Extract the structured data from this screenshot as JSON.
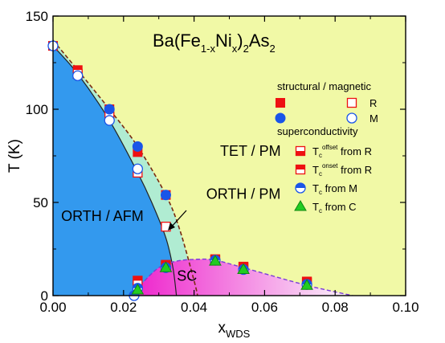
{
  "chart_data": {
    "type": "scatter",
    "title": {
      "parts": [
        {
          "text": "Ba(Fe",
          "sub": false
        },
        {
          "text": "1-x",
          "sub": true
        },
        {
          "text": "Ni",
          "sub": false
        },
        {
          "text": "x",
          "sub": true
        },
        {
          "text": ")",
          "sub": false
        },
        {
          "text": "2",
          "sub": true
        },
        {
          "text": "As",
          "sub": false
        },
        {
          "text": "2",
          "sub": true
        }
      ]
    },
    "xlabel": {
      "main": "x",
      "sub": "WDS"
    },
    "ylabel": "T (K)",
    "xlim": [
      0.0,
      0.1
    ],
    "ylim": [
      0,
      150
    ],
    "xticks": [
      "0.00",
      "0.02",
      "0.04",
      "0.06",
      "0.08",
      "0.10"
    ],
    "xtick_values": [
      0.0,
      0.02,
      0.04,
      0.06,
      0.08,
      0.1
    ],
    "yticks": [
      "0",
      "50",
      "100",
      "150"
    ],
    "ytick_values": [
      0,
      50,
      100,
      150
    ],
    "grid": false,
    "legend_position": "right",
    "colors": {
      "tet_region": "#f1f9a6",
      "orth_region": "#3399ee",
      "orth_pm_band": "#b0ecd2",
      "sc_start": "#ee22cc",
      "sc_end": "#faf6fb",
      "marker_red": "#ee1111",
      "marker_blue": "#1a55e8",
      "marker_green": "#22cc22",
      "boundary": "#7a2a10"
    },
    "regions": [
      {
        "label": "TET / PM",
        "x": 0.056,
        "y": 75
      },
      {
        "label": "ORTH / PM",
        "x": 0.054,
        "y": 52
      },
      {
        "label": "ORTH / AFM",
        "x": 0.014,
        "y": 40
      },
      {
        "label": "SC",
        "x": 0.038,
        "y": 8
      }
    ],
    "boundaries": {
      "structural": [
        [
          0.0,
          137
        ],
        [
          0.007,
          121
        ],
        [
          0.016,
          100
        ],
        [
          0.024,
          80
        ],
        [
          0.032,
          54
        ],
        [
          0.036,
          35
        ],
        [
          0.04,
          8
        ],
        [
          0.041,
          0
        ]
      ],
      "magnetic": [
        [
          0.0,
          134
        ],
        [
          0.007,
          119
        ],
        [
          0.016,
          94
        ],
        [
          0.024,
          66
        ],
        [
          0.028,
          50
        ],
        [
          0.032,
          31
        ],
        [
          0.034,
          15
        ],
        [
          0.035,
          0
        ]
      ],
      "superconducting": [
        [
          0.0225,
          0
        ],
        [
          0.025,
          6
        ],
        [
          0.03,
          15
        ],
        [
          0.035,
          18.5
        ],
        [
          0.041,
          19.5
        ],
        [
          0.046,
          19
        ],
        [
          0.054,
          15
        ],
        [
          0.072,
          5.5
        ],
        [
          0.085,
          0
        ]
      ]
    },
    "series": [
      {
        "name": "structural from R",
        "marker": "square-filled-red",
        "x": [
          0.0,
          0.007,
          0.016,
          0.024,
          0.032
        ],
        "y": [
          134,
          121,
          100,
          77,
          54
        ]
      },
      {
        "name": "magnetic from R",
        "marker": "square-open-red",
        "x": [
          0.007,
          0.016,
          0.024,
          0.032
        ],
        "y": [
          119,
          96,
          66,
          37
        ]
      },
      {
        "name": "structural from M",
        "marker": "circle-filled-blue",
        "x": [
          0.016,
          0.024,
          0.032
        ],
        "y": [
          100,
          80,
          54
        ]
      },
      {
        "name": "magnetic from M",
        "marker": "circle-open-blue",
        "x": [
          0.0,
          0.007,
          0.016,
          0.024
        ],
        "y": [
          134,
          118,
          94,
          68
        ]
      },
      {
        "name": "Tc offset from R",
        "marker": "square-half-red-bottom",
        "x": [
          0.024,
          0.032,
          0.046,
          0.054,
          0.072
        ],
        "y": [
          6,
          16,
          19,
          15,
          7
        ]
      },
      {
        "name": "Tc onset from R",
        "marker": "square-half-red-top",
        "x": [
          0.024,
          0.032,
          0.046,
          0.054,
          0.072
        ],
        "y": [
          8,
          16.5,
          19.5,
          15.5,
          7.5
        ]
      },
      {
        "name": "Tc from M",
        "marker": "circle-half-blue",
        "x": [
          0.023,
          0.024,
          0.032,
          0.046,
          0.054,
          0.072
        ],
        "y": [
          0,
          4,
          15,
          19,
          14,
          6
        ]
      },
      {
        "name": "Tc from C",
        "marker": "triangle-green",
        "x": [
          0.024,
          0.032,
          0.046,
          0.054,
          0.072
        ],
        "y": [
          3,
          15,
          18.5,
          14,
          5.5
        ]
      }
    ],
    "legend": {
      "header_structural": "structural / magnetic",
      "r_label": "R",
      "m_label": "M",
      "header_sc": "superconductivity",
      "entries": [
        {
          "marker": "square-half-red-bottom",
          "main": "T",
          "sub": "c",
          "sup": "offset",
          "rest": " from R"
        },
        {
          "marker": "square-half-red-top",
          "main": "T",
          "sub": "c",
          "sup": "onset",
          "rest": " from R"
        },
        {
          "marker": "circle-half-blue",
          "main": "T",
          "sub": "c",
          "sup": "",
          "rest": " from M"
        },
        {
          "marker": "triangle-green",
          "main": "T",
          "sub": "c",
          "sup": "",
          "rest": " from C"
        }
      ]
    }
  }
}
